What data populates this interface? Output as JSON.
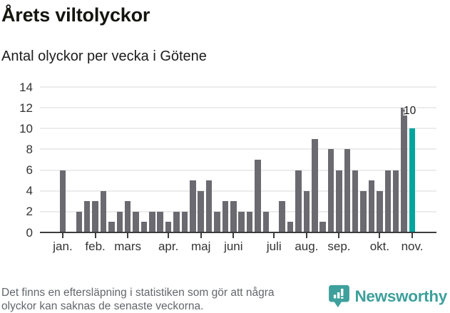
{
  "header": {
    "title": "Årets viltolyckor",
    "subtitle": "Antal olyckor per vecka i Götene"
  },
  "chart_data": {
    "type": "bar",
    "title": "Årets viltolyckor",
    "subtitle": "Antal olyckor per vecka i Götene",
    "unit": "olyckor per vecka",
    "values": [
      6,
      0,
      2,
      3,
      3,
      4,
      1,
      2,
      3,
      2,
      1,
      2,
      2,
      1,
      2,
      2,
      5,
      4,
      5,
      2,
      3,
      3,
      2,
      2,
      7,
      2,
      0,
      3,
      1,
      6,
      4,
      9,
      1,
      8,
      6,
      8,
      6,
      4,
      5,
      4,
      6,
      6,
      12,
      10
    ],
    "highlight_index": 43,
    "highlight_label": "10",
    "y_ticks": [
      0,
      2,
      4,
      6,
      8,
      10,
      12,
      14
    ],
    "ylim": [
      0,
      14
    ],
    "grid": true,
    "month_ticks": [
      {
        "label": "jan.",
        "index": 0
      },
      {
        "label": "feb.",
        "index": 4
      },
      {
        "label": "mars",
        "index": 8
      },
      {
        "label": "apr.",
        "index": 13
      },
      {
        "label": "maj",
        "index": 17
      },
      {
        "label": "juni",
        "index": 21
      },
      {
        "label": "juli",
        "index": 26
      },
      {
        "label": "aug.",
        "index": 30
      },
      {
        "label": "sep.",
        "index": 34
      },
      {
        "label": "okt.",
        "index": 39
      },
      {
        "label": "nov.",
        "index": 43
      }
    ],
    "colors": {
      "bar": "#6a6a70",
      "highlight": "#00a69e",
      "axis": "#3c3c3c",
      "grid": "#ececec"
    }
  },
  "footer": {
    "note_line1": "Det finns en eftersläpning i statistiken som gör att några",
    "note_line2": "olyckor kan saknas de senaste veckorna.",
    "brand": "Newsworthy",
    "brand_color": "#3ea09c"
  }
}
